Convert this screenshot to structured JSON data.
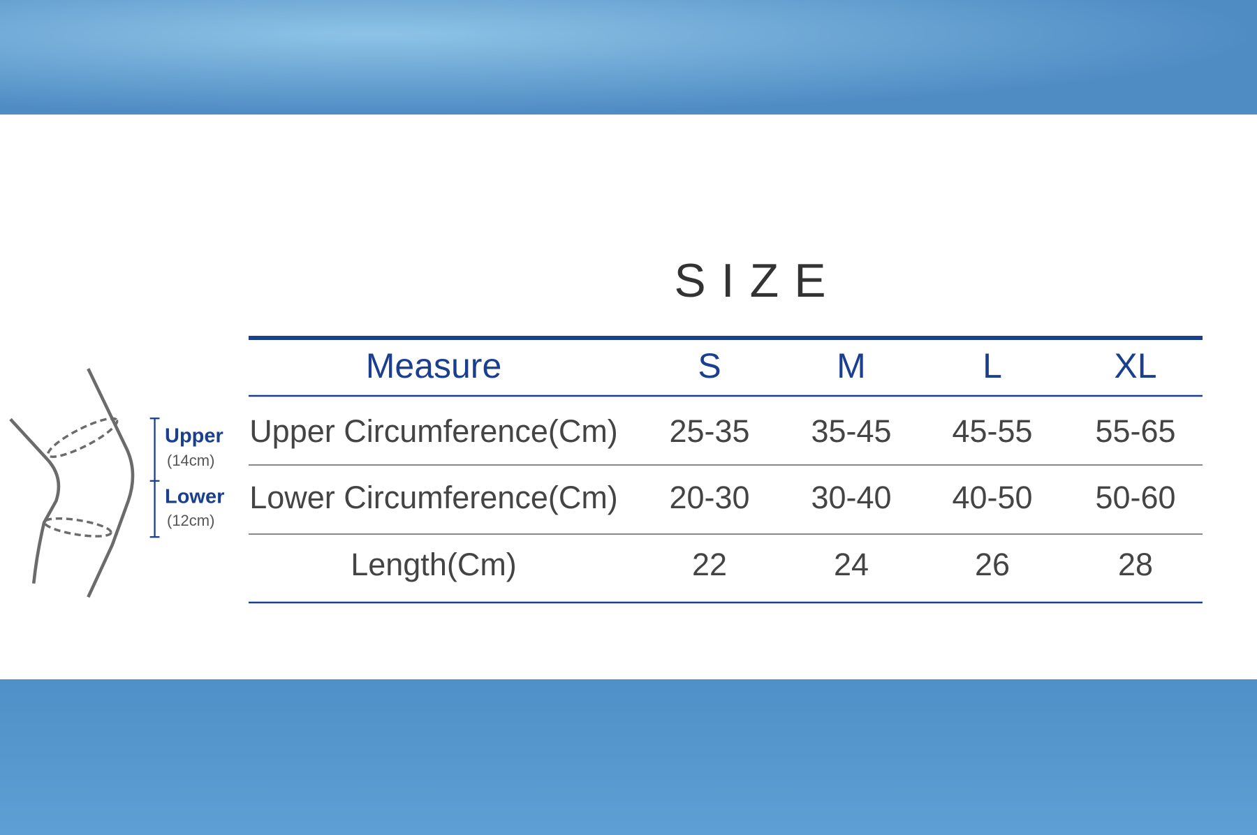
{
  "title": "SIZE",
  "diagram": {
    "upper": "Upper",
    "upper_size": "(14cm)",
    "lower": "Lower",
    "lower_size": "(12cm)"
  },
  "table": {
    "header": [
      "Measure",
      "S",
      "M",
      "L",
      "XL"
    ],
    "rows": [
      [
        "Upper Circumference(Cm)",
        "25-35",
        "35-45",
        "45-55",
        "55-65"
      ],
      [
        "Lower Circumference(Cm)",
        "20-30",
        "30-40",
        "40-50",
        "50-60"
      ],
      [
        "Length(Cm)",
        "22",
        "24",
        "26",
        "28"
      ]
    ]
  }
}
